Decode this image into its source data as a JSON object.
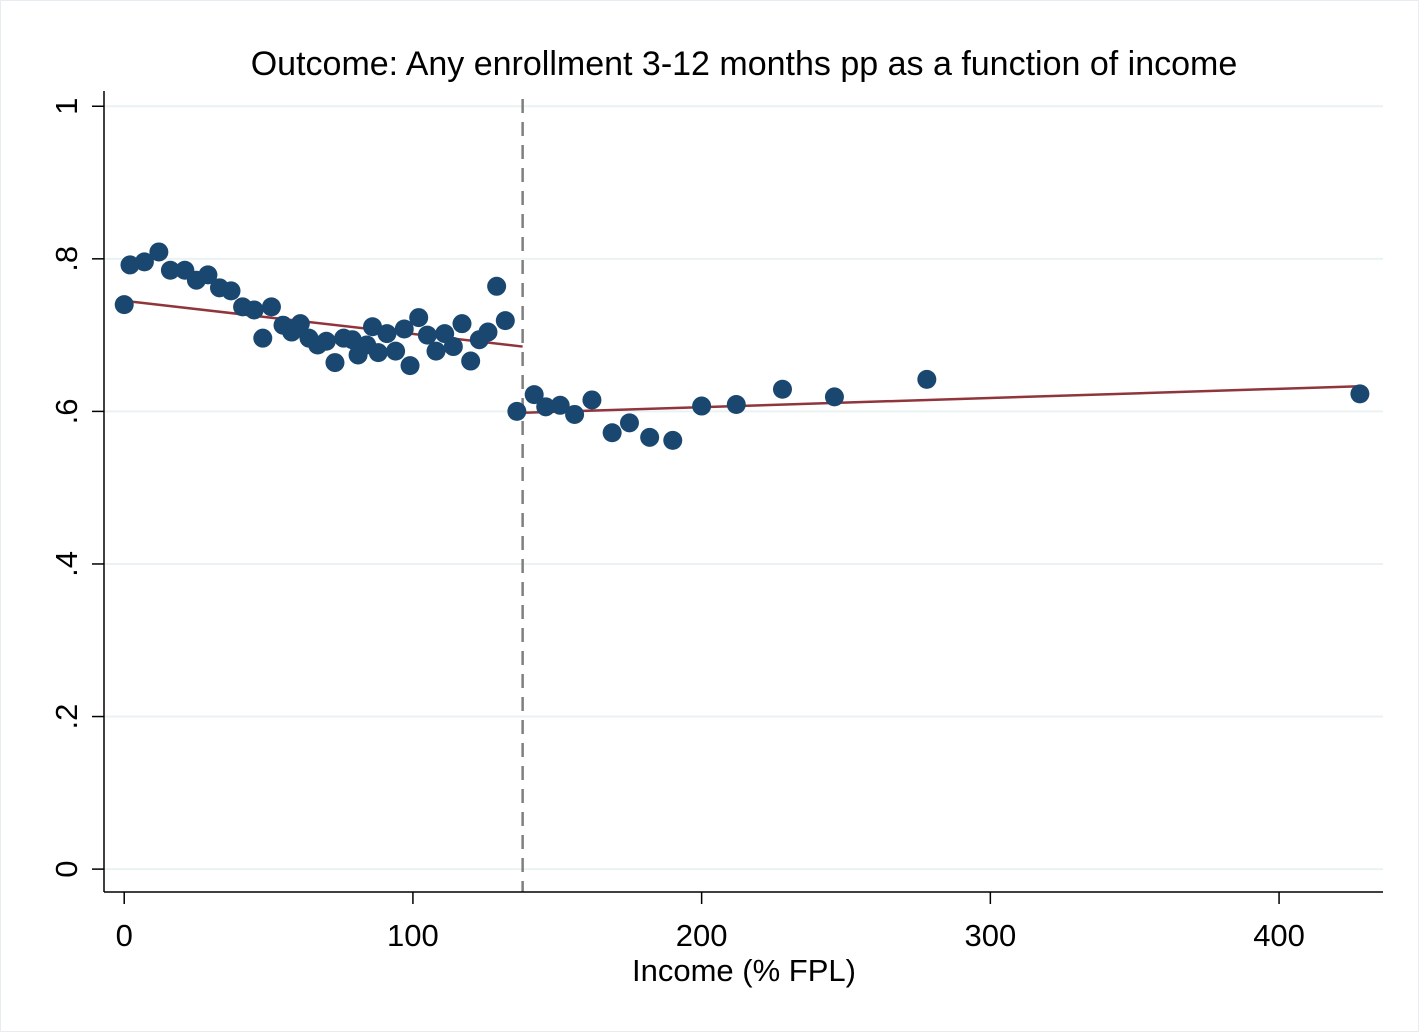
{
  "chart_data": {
    "type": "scatter",
    "title": "Outcome: Any enrollment 3-12 months pp as a function of income",
    "xlabel": "Income (% FPL)",
    "ylabel": "",
    "xlim": [
      -7,
      436
    ],
    "ylim": [
      -0.03,
      1.02
    ],
    "x_ticks": [
      0,
      100,
      200,
      300,
      400
    ],
    "x_tick_labels": [
      "0",
      "100",
      "200",
      "300",
      "400"
    ],
    "y_ticks": [
      0,
      0.2,
      0.4,
      0.6,
      0.8,
      1
    ],
    "y_tick_labels": [
      "0",
      ".2",
      ".4",
      ".6",
      ".8",
      "1"
    ],
    "grid": true,
    "legend": "none",
    "cutoff_x": 138,
    "colors": {
      "points": "#1a476f",
      "fit_line": "#90353b",
      "cutoff": "#7f7f7f",
      "grid": "#eaf2f3"
    },
    "series": [
      {
        "type": "scatter",
        "points": [
          [
            0,
            0.74
          ],
          [
            2,
            0.792
          ],
          [
            7,
            0.796
          ],
          [
            12,
            0.809
          ],
          [
            16,
            0.785
          ],
          [
            21,
            0.785
          ],
          [
            25,
            0.772
          ],
          [
            29,
            0.779
          ],
          [
            33,
            0.762
          ],
          [
            37,
            0.758
          ],
          [
            41,
            0.737
          ],
          [
            45,
            0.733
          ],
          [
            48,
            0.696
          ],
          [
            51,
            0.737
          ],
          [
            55,
            0.713
          ],
          [
            58,
            0.704
          ],
          [
            61,
            0.715
          ],
          [
            64,
            0.696
          ],
          [
            67,
            0.687
          ],
          [
            70,
            0.692
          ],
          [
            73,
            0.664
          ],
          [
            76,
            0.696
          ],
          [
            79,
            0.694
          ],
          [
            81,
            0.674
          ],
          [
            84,
            0.687
          ],
          [
            86,
            0.711
          ],
          [
            88,
            0.677
          ],
          [
            91,
            0.702
          ],
          [
            94,
            0.679
          ],
          [
            97,
            0.708
          ],
          [
            99,
            0.66
          ],
          [
            102,
            0.723
          ],
          [
            105,
            0.7
          ],
          [
            108,
            0.679
          ],
          [
            111,
            0.702
          ],
          [
            114,
            0.685
          ],
          [
            117,
            0.715
          ],
          [
            120,
            0.666
          ],
          [
            123,
            0.694
          ],
          [
            126,
            0.704
          ],
          [
            129,
            0.764
          ],
          [
            132,
            0.719
          ],
          [
            136,
            0.6
          ],
          [
            142,
            0.622
          ],
          [
            146,
            0.606
          ],
          [
            151,
            0.608
          ],
          [
            156,
            0.596
          ],
          [
            162,
            0.615
          ],
          [
            169,
            0.572
          ],
          [
            175,
            0.585
          ],
          [
            182,
            0.566
          ],
          [
            190,
            0.562
          ],
          [
            200,
            0.607
          ],
          [
            212,
            0.609
          ],
          [
            228,
            0.629
          ],
          [
            246,
            0.619
          ],
          [
            278,
            0.642
          ],
          [
            428,
            0.623
          ]
        ]
      },
      {
        "type": "line",
        "name": "",
        "points": [
          [
            0,
            0.745
          ],
          [
            138,
            0.685
          ]
        ]
      },
      {
        "type": "line",
        "name": "",
        "points": [
          [
            137,
            0.598
          ],
          [
            428,
            0.633
          ]
        ]
      }
    ]
  }
}
